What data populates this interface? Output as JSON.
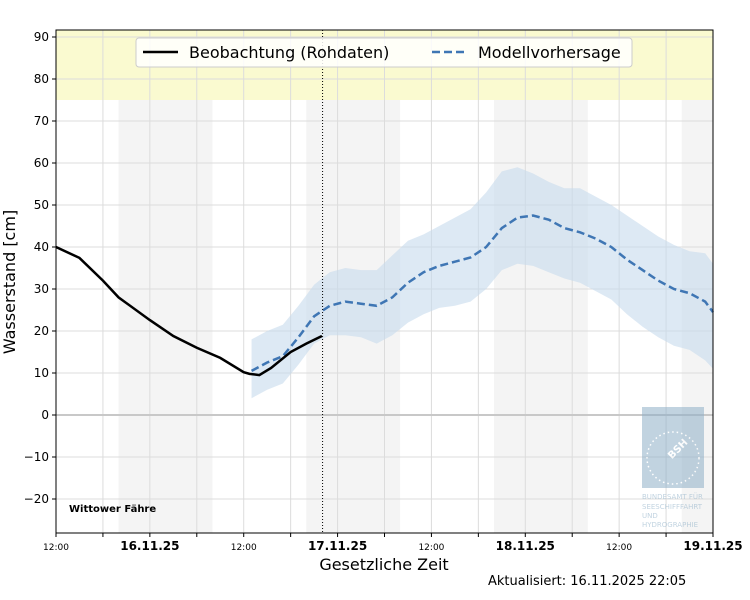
{
  "chart_data": {
    "type": "line",
    "title": "",
    "xlabel": "Gesetzliche Zeit",
    "ylabel": "Wasserstand [cm]",
    "xlim": [
      "2025-11-15 12:00",
      "2025-11-19 00:00"
    ],
    "ylim": [
      -28,
      91.7
    ],
    "yticks": [
      -20,
      -10,
      0,
      10,
      20,
      30,
      40,
      50,
      60,
      70,
      80,
      90
    ],
    "xticks": [
      {
        "t": "2025-11-15 12:00",
        "label": "12:00",
        "major": false
      },
      {
        "t": "2025-11-16 00:00",
        "label": "16.11.25",
        "major": true
      },
      {
        "t": "2025-11-16 12:00",
        "label": "12:00",
        "major": false
      },
      {
        "t": "2025-11-17 00:00",
        "label": "17.11.25",
        "major": true
      },
      {
        "t": "2025-11-17 12:00",
        "label": "12:00",
        "major": false
      },
      {
        "t": "2025-11-18 00:00",
        "label": "18.11.25",
        "major": true
      },
      {
        "t": "2025-11-18 12:00",
        "label": "12:00",
        "major": false
      },
      {
        "t": "2025-11-19 00:00",
        "label": "19.11.25",
        "major": true
      }
    ],
    "grid": true,
    "legend_position": "top-center",
    "warning_band": {
      "from": 75,
      "color": "#fafad0"
    },
    "night_bands": [
      [
        "2025-11-15 20:00",
        "2025-11-16 08:00"
      ],
      [
        "2025-11-16 20:00",
        "2025-11-17 08:00"
      ],
      [
        "2025-11-17 20:00",
        "2025-11-18 08:00"
      ],
      [
        "2025-11-18 20:00",
        "2025-11-19 00:00"
      ]
    ],
    "now_marker": "2025-11-16 22:05",
    "station": "Wittower Fähre",
    "series": [
      {
        "name": "Beobachtung (Rohdaten)",
        "color": "#000000",
        "style": "solid",
        "points": [
          [
            "2025-11-15 12:00",
            40
          ],
          [
            "2025-11-15 15:00",
            37.4
          ],
          [
            "2025-11-15 18:00",
            32
          ],
          [
            "2025-11-15 20:00",
            28
          ],
          [
            "2025-11-16 00:00",
            22.6
          ],
          [
            "2025-11-16 03:00",
            18.8
          ],
          [
            "2025-11-16 06:00",
            16
          ],
          [
            "2025-11-16 09:00",
            13.6
          ],
          [
            "2025-11-16 12:00",
            10.2
          ],
          [
            "2025-11-16 12:45",
            9.8
          ],
          [
            "2025-11-16 14:00",
            9.5
          ],
          [
            "2025-11-16 15:30",
            11.2
          ],
          [
            "2025-11-16 18:00",
            15
          ],
          [
            "2025-11-16 20:00",
            17
          ],
          [
            "2025-11-16 22:00",
            18.8
          ]
        ]
      },
      {
        "name": "Modellvorhersage",
        "color": "#3f76b4",
        "band_color": "#c6dbed",
        "style": "dashed",
        "points": [
          [
            "2025-11-16 13:00",
            10.5,
            4,
            18
          ],
          [
            "2025-11-16 15:00",
            12.5,
            6,
            20
          ],
          [
            "2025-11-16 17:00",
            14,
            7.5,
            21.5
          ],
          [
            "2025-11-16 19:00",
            18.5,
            12,
            26
          ],
          [
            "2025-11-16 21:00",
            23.5,
            17,
            31
          ],
          [
            "2025-11-16 23:00",
            26,
            19,
            34
          ],
          [
            "2025-11-17 01:00",
            27,
            19,
            35
          ],
          [
            "2025-11-17 03:00",
            26.5,
            18.5,
            34.5
          ],
          [
            "2025-11-17 05:00",
            26,
            17,
            34.5
          ],
          [
            "2025-11-17 07:00",
            28,
            19,
            38
          ],
          [
            "2025-11-17 09:00",
            31.5,
            22,
            41.5
          ],
          [
            "2025-11-17 11:00",
            34,
            24,
            43
          ],
          [
            "2025-11-17 13:00",
            35.5,
            25.5,
            45
          ],
          [
            "2025-11-17 15:00",
            36.5,
            26,
            47
          ],
          [
            "2025-11-17 17:00",
            37.5,
            27,
            49
          ],
          [
            "2025-11-17 19:00",
            40,
            30,
            53
          ],
          [
            "2025-11-17 21:00",
            44.5,
            34.5,
            58
          ],
          [
            "2025-11-17 23:00",
            47,
            36,
            59
          ],
          [
            "2025-11-18 01:00",
            47.5,
            35.5,
            57.5
          ],
          [
            "2025-11-18 03:00",
            46.5,
            34,
            55.5
          ],
          [
            "2025-11-18 05:00",
            44.5,
            32.5,
            54
          ],
          [
            "2025-11-18 07:00",
            43.5,
            31.5,
            54
          ],
          [
            "2025-11-18 09:00",
            42,
            29.5,
            52
          ],
          [
            "2025-11-18 11:00",
            40,
            27.5,
            50
          ],
          [
            "2025-11-18 13:00",
            37,
            24,
            47.5
          ],
          [
            "2025-11-18 15:00",
            34.5,
            21,
            45
          ],
          [
            "2025-11-18 17:00",
            32,
            18.5,
            42.5
          ],
          [
            "2025-11-18 19:00",
            30,
            16.5,
            40.5
          ],
          [
            "2025-11-18 21:00",
            29,
            15.5,
            39
          ],
          [
            "2025-11-18 23:00",
            27,
            13,
            38.5
          ],
          [
            "2025-11-19 00:00",
            24.5,
            11,
            36
          ]
        ]
      }
    ]
  },
  "logo": {
    "abbr": "BSH",
    "text": [
      "BUNDESAMT FÜR",
      "SEESCHIFFFAHRT",
      "UND",
      "HYDROGRAPHIE"
    ]
  },
  "updated": "Aktualisiert: 16.11.2025 22:05"
}
